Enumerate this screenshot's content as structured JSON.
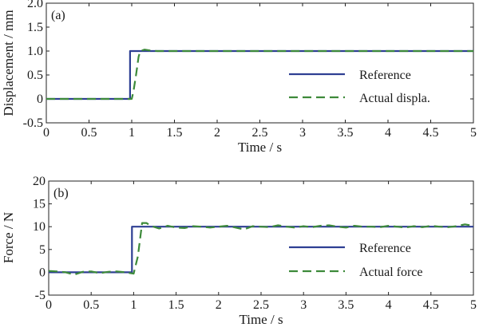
{
  "chart_data": [
    {
      "type": "line",
      "panel_label": "(a)",
      "xlabel": "Time / s",
      "ylabel": "Displacement / mm",
      "xlim": [
        0,
        5
      ],
      "ylim": [
        -0.5,
        2.0
      ],
      "x_ticks": [
        0,
        0.5,
        1,
        1.5,
        2,
        2.5,
        3,
        3.5,
        4,
        4.5,
        5
      ],
      "x_tick_labels": [
        "0",
        "0.5",
        "1",
        "1.5",
        "2",
        "2.5",
        "3",
        "3.5",
        "4",
        "4.5",
        "5"
      ],
      "y_ticks": [
        -0.5,
        0,
        0.5,
        1.0,
        1.5,
        2.0
      ],
      "y_tick_labels": [
        "-0.5",
        "0",
        "0.5",
        "1.0",
        "1.5",
        "2.0"
      ],
      "legend_position": "right",
      "series": [
        {
          "name": "Reference",
          "style": "solid",
          "color": "#2e3f93",
          "x": [
            0,
            0.98,
            0.98,
            5
          ],
          "y": [
            0,
            0,
            1.0,
            1.0
          ]
        },
        {
          "name": "Actual displa.",
          "style": "dashed",
          "color": "#3d8a3a",
          "x": [
            0,
            1.0,
            1.02,
            1.05,
            1.08,
            1.1,
            1.15,
            1.22,
            1.3,
            1.5,
            2.0,
            3.0,
            4.0,
            5.0
          ],
          "y": [
            0,
            0,
            0.15,
            0.5,
            0.88,
            1.0,
            1.03,
            1.01,
            1.0,
            1.0,
            1.0,
            1.0,
            1.0,
            1.0
          ]
        }
      ]
    },
    {
      "type": "line",
      "panel_label": "(b)",
      "xlabel": "Time / s",
      "ylabel": "Force / N",
      "xlim": [
        0,
        5
      ],
      "ylim": [
        -5,
        20
      ],
      "x_ticks": [
        0,
        0.5,
        1,
        1.5,
        2,
        2.5,
        3,
        3.5,
        4,
        4.5,
        5
      ],
      "x_tick_labels": [
        "0",
        "0.5",
        "1",
        "1.5",
        "2",
        "2.5",
        "3",
        "3.5",
        "4",
        "4.5",
        "5"
      ],
      "y_ticks": [
        -5,
        0,
        5,
        10,
        15,
        20
      ],
      "y_tick_labels": [
        "-5",
        "0",
        "5",
        "10",
        "15",
        "20"
      ],
      "legend_position": "right",
      "series": [
        {
          "name": "Reference",
          "style": "solid",
          "color": "#2e3f93",
          "x": [
            0,
            0.98,
            0.98,
            5
          ],
          "y": [
            0,
            0,
            10,
            10
          ]
        },
        {
          "name": "Actual force",
          "style": "dashed",
          "color": "#3d8a3a",
          "x": [
            0,
            0.1,
            0.2,
            0.3,
            0.4,
            0.5,
            0.6,
            0.7,
            0.8,
            0.9,
            1.0,
            1.05,
            1.1,
            1.15,
            1.2,
            1.3,
            1.4,
            1.5,
            1.6,
            1.7,
            1.8,
            1.9,
            2.0,
            2.1,
            2.2,
            2.3,
            2.4,
            2.5,
            2.6,
            2.7,
            2.8,
            2.9,
            3.0,
            3.1,
            3.2,
            3.3,
            3.4,
            3.5,
            3.6,
            3.7,
            3.8,
            3.9,
            4.0,
            4.1,
            4.2,
            4.3,
            4.4,
            4.5,
            4.6,
            4.7,
            4.8,
            4.9,
            5.0
          ],
          "y": [
            0.3,
            0.2,
            0.0,
            -0.5,
            0.1,
            0.2,
            -0.2,
            0.1,
            0.2,
            0.0,
            -0.3,
            3.5,
            10.8,
            10.8,
            10.2,
            9.6,
            10.2,
            9.8,
            9.7,
            10.1,
            10.0,
            9.8,
            10.0,
            10.2,
            9.8,
            9.4,
            10.1,
            10.0,
            9.9,
            10.3,
            10.0,
            9.8,
            10.1,
            9.9,
            10.2,
            10.3,
            10.0,
            9.8,
            10.2,
            10.0,
            10.0,
            9.9,
            10.2,
            10.0,
            9.8,
            10.1,
            9.9,
            10.2,
            10.0,
            9.9,
            10.1,
            10.5,
            10.2
          ]
        }
      ]
    }
  ]
}
